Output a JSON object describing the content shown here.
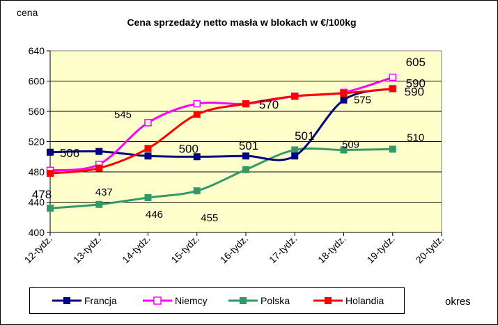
{
  "chart_data": {
    "type": "line",
    "title": "Cena sprzedaży netto masła  w blokach  w €/100kg",
    "ylabel": "cena",
    "xlabel": "okres",
    "categories": [
      "12-tydz.",
      "13-tydz.",
      "14-tydz.",
      "15-tydz.",
      "16-tydz.",
      "17-tydz.",
      "18-tydz.",
      "19-tydz.",
      "20-tydz."
    ],
    "ylim": [
      400,
      640
    ],
    "yticks": [
      400,
      440,
      480,
      520,
      560,
      600,
      640
    ],
    "grid": true,
    "legend_position": "bottom",
    "colors": {
      "plot_bg": "#FFFFCC",
      "grid": "#000000"
    },
    "series": [
      {
        "name": "Francja",
        "color": "#000080",
        "marker": "square-filled",
        "values": [
          506,
          507,
          501,
          500,
          501,
          501,
          575,
          590,
          null
        ]
      },
      {
        "name": "Niemcy",
        "color": "#FF00FF",
        "marker": "square-open",
        "values": [
          482,
          490,
          545,
          570,
          570,
          580,
          585,
          605,
          null
        ]
      },
      {
        "name": "Polska",
        "color": "#339966",
        "marker": "square-filled",
        "values": [
          432,
          437,
          446,
          455,
          483,
          509,
          509,
          510,
          null
        ]
      },
      {
        "name": "Holandia",
        "color": "#FF0000",
        "marker": "square-filled",
        "values": [
          478,
          485,
          511,
          556,
          570,
          580,
          584,
          590,
          null
        ]
      }
    ],
    "data_labels": [
      {
        "series": "Francja",
        "category": "12-tydz.",
        "text": "506",
        "size": 17
      },
      {
        "series": "Francja",
        "category": "15-tydz.",
        "text": "500",
        "size": 17
      },
      {
        "series": "Francja",
        "category": "16-tydz.",
        "text": "501",
        "size": 17
      },
      {
        "series": "Francja",
        "category": "17-tydz.",
        "text": "501",
        "size": 17
      },
      {
        "series": "Francja",
        "category": "18-tydz.",
        "text": "575",
        "size": 15
      },
      {
        "series": "Francja",
        "category": "19-tydz.",
        "text": "590",
        "size": 17
      },
      {
        "series": "Niemcy",
        "category": "14-tydz.",
        "text": "545",
        "size": 15
      },
      {
        "series": "Niemcy",
        "category": "19-tydz.",
        "text": "605",
        "size": 17
      },
      {
        "series": "Holandia",
        "category": "12-tydz.",
        "text": "478",
        "size": 17
      },
      {
        "series": "Holandia",
        "category": "16-tydz.",
        "text": "570",
        "size": 17
      },
      {
        "series": "Holandia",
        "category": "19-tydz.",
        "text": "590",
        "size": 17
      },
      {
        "series": "Polska",
        "category": "13-tydz.",
        "text": "437",
        "size": 15
      },
      {
        "series": "Polska",
        "category": "14-tydz.",
        "text": "446",
        "size": 15
      },
      {
        "series": "Polska",
        "category": "15-tydz.",
        "text": "455",
        "size": 15
      },
      {
        "series": "Polska",
        "category": "18-tydz.",
        "text": "509",
        "size": 15
      },
      {
        "series": "Polska",
        "category": "19-tydz.",
        "text": "510",
        "size": 15
      }
    ]
  }
}
